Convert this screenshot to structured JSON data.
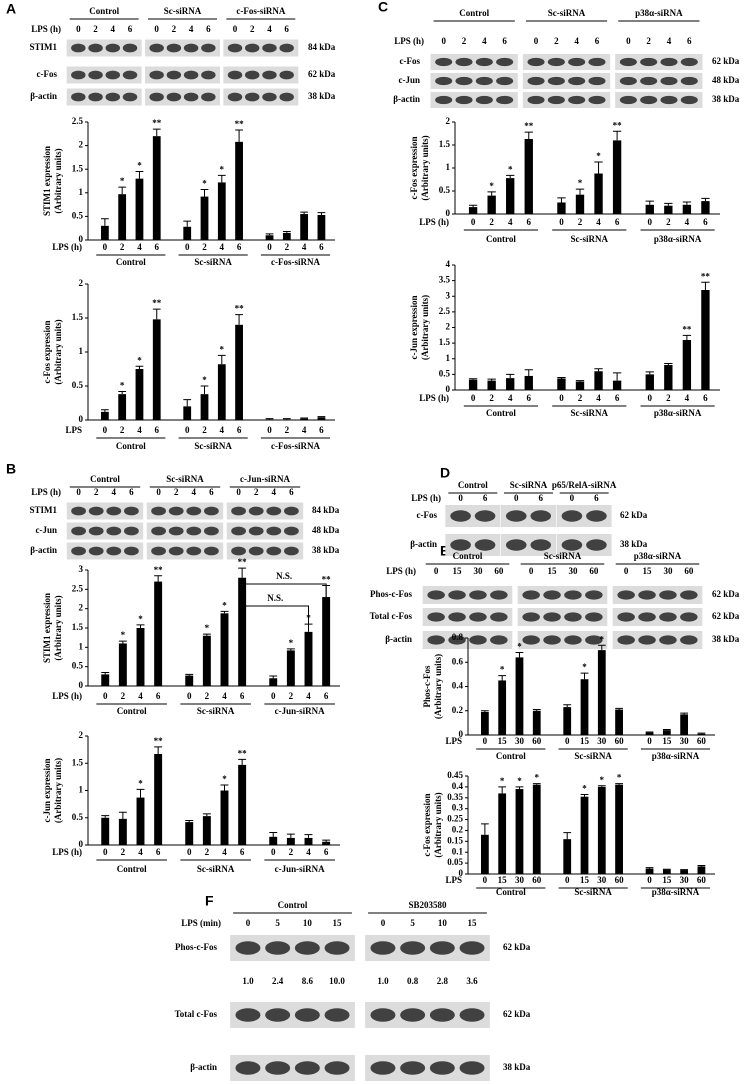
{
  "panel_labels": [
    "A",
    "B",
    "C",
    "D",
    "E",
    "F"
  ],
  "blots": {
    "A": {
      "lps": "LPS  (h)",
      "groups": [
        {
          "name": "Control",
          "times": [
            "0",
            "2",
            "4",
            "6"
          ]
        },
        {
          "name": "Sc-siRNA",
          "times": [
            "0",
            "2",
            "4",
            "6"
          ]
        },
        {
          "name": "c-Fos-siRNA",
          "times": [
            "0",
            "2",
            "4",
            "6"
          ]
        }
      ],
      "rows": [
        {
          "label": "STIM1",
          "kda": "84 kDa"
        },
        {
          "label": "c-Fos",
          "kda": "62 kDa"
        },
        {
          "label": "β-actin",
          "kda": "38 kDa"
        }
      ]
    },
    "C": {
      "lps": "LPS  (h)",
      "groups": [
        {
          "name": "Control",
          "times": [
            "0",
            "2",
            "4",
            "6"
          ]
        },
        {
          "name": "Sc-siRNA",
          "times": [
            "0",
            "2",
            "4",
            "6"
          ]
        },
        {
          "name": "p38α-siRNA",
          "times": [
            "0",
            "2",
            "4",
            "6"
          ]
        }
      ],
      "rows": [
        {
          "label": "c-Fos",
          "kda": "62 kDa"
        },
        {
          "label": "c-Jun",
          "kda": "48 kDa"
        },
        {
          "label": "β-actin",
          "kda": "38 kDa"
        }
      ]
    },
    "B": {
      "lps": "LPS  (h)",
      "groups": [
        {
          "name": "Control",
          "times": [
            "0",
            "2",
            "4",
            "6"
          ]
        },
        {
          "name": "Sc-siRNA",
          "times": [
            "0",
            "2",
            "4",
            "6"
          ]
        },
        {
          "name": "c-Jun-siRNA",
          "times": [
            "0",
            "2",
            "4",
            "6"
          ]
        }
      ],
      "rows": [
        {
          "label": "STIM1",
          "kda": "84 kDa"
        },
        {
          "label": "c-Jun",
          "kda": "48 kDa"
        },
        {
          "label": "β-actin",
          "kda": "38 kDa"
        }
      ]
    },
    "D": {
      "lps": "LPS (h)",
      "groups": [
        {
          "name": "Control",
          "times": [
            "0",
            "6"
          ]
        },
        {
          "name": "Sc-siRNA",
          "times": [
            "0",
            "6"
          ]
        },
        {
          "name": "p65/RelA-siRNA",
          "times": [
            "0",
            "6"
          ]
        }
      ],
      "rows": [
        {
          "label": "c-Fos",
          "kda": "62 kDa"
        },
        {
          "label": "β-actin",
          "kda": "38 kDa"
        }
      ]
    },
    "E": {
      "lps": "LPS  (h)",
      "groups": [
        {
          "name": "Control",
          "times": [
            "0",
            "15",
            "30",
            "60"
          ]
        },
        {
          "name": "Sc-siRNA",
          "times": [
            "0",
            "15",
            "30",
            "60"
          ]
        },
        {
          "name": "p38α-siRNA",
          "times": [
            "0",
            "15",
            "30",
            "60"
          ]
        }
      ],
      "rows": [
        {
          "label": "Phos-c-Fos",
          "kda": "62 kDa"
        },
        {
          "label": "Total c-Fos",
          "kda": "62 kDa"
        },
        {
          "label": "β-actin",
          "kda": "38 kDa"
        }
      ]
    },
    "F": {
      "lps": "LPS (min)",
      "groups": [
        {
          "name": "Control",
          "times": [
            "0",
            "5",
            "10",
            "15"
          ]
        },
        {
          "name": "SB203580",
          "times": [
            "0",
            "5",
            "10",
            "15"
          ]
        }
      ],
      "rows": [
        {
          "label": "Phos-c-Fos",
          "kda": "62 kDa"
        },
        {
          "label": "Total c-Fos",
          "kda": "62 kDa"
        },
        {
          "label": "β-actin",
          "kda": "38 kDa"
        }
      ],
      "quantification": [
        "1.0",
        "2.4",
        "8.6",
        "10.0",
        "1.0",
        "0.8",
        "2.8",
        "3.6"
      ]
    }
  },
  "chart_data": [
    {
      "type": "bar",
      "ylabel": [
        "STIM1 expression",
        "(Arbitrary units)"
      ],
      "xlabel": "LPS (h)",
      "color": "#000000",
      "ylim": [
        0,
        2.5
      ],
      "yticks": [
        0,
        0.5,
        1,
        1.5,
        2,
        2.5
      ],
      "series": [
        {
          "name": "Control",
          "categories": [
            "0",
            "2",
            "4",
            "6"
          ],
          "values": [
            0.3,
            0.97,
            1.3,
            2.2
          ],
          "errors": [
            0.15,
            0.15,
            0.15,
            0.15
          ],
          "markers": [
            null,
            "*",
            "*",
            "**"
          ]
        },
        {
          "name": "Sc-siRNA",
          "categories": [
            "0",
            "2",
            "4",
            "6"
          ],
          "values": [
            0.28,
            0.92,
            1.22,
            2.08
          ],
          "errors": [
            0.12,
            0.15,
            0.15,
            0.25
          ],
          "markers": [
            null,
            "*",
            "*",
            "**"
          ]
        },
        {
          "name": "c-Fos-siRNA",
          "categories": [
            "0",
            "2",
            "4",
            "6"
          ],
          "values": [
            0.1,
            0.15,
            0.55,
            0.53
          ],
          "errors": [
            0.03,
            0.03,
            0.04,
            0.05
          ],
          "markers": [
            null,
            null,
            null,
            null
          ]
        }
      ]
    },
    {
      "type": "bar",
      "ylabel": [
        "c-Fos expression",
        "(Arbitrary units)"
      ],
      "xlabel": "LPS",
      "color": "#000000",
      "ylim": [
        0,
        2
      ],
      "yticks": [
        0,
        0.5,
        1,
        1.5,
        2
      ],
      "series": [
        {
          "name": "Control",
          "categories": [
            "0",
            "2",
            "4",
            "6"
          ],
          "values": [
            0.12,
            0.38,
            0.75,
            1.48
          ],
          "errors": [
            0.03,
            0.04,
            0.04,
            0.15
          ],
          "markers": [
            null,
            "*",
            "*",
            "**"
          ]
        },
        {
          "name": "Sc-siRNA",
          "categories": [
            "0",
            "2",
            "4",
            "6"
          ],
          "values": [
            0.2,
            0.38,
            0.82,
            1.4
          ],
          "errors": [
            0.1,
            0.12,
            0.13,
            0.15
          ],
          "markers": [
            null,
            "*",
            "*",
            "**"
          ]
        },
        {
          "name": "c-Fos-siRNA",
          "categories": [
            "0",
            "2",
            "4",
            "6"
          ],
          "values": [
            0.01,
            0.01,
            0.02,
            0.04
          ],
          "errors": [
            0.01,
            0.01,
            0.01,
            0.01
          ],
          "markers": [
            null,
            null,
            null,
            null
          ]
        }
      ]
    },
    {
      "type": "bar",
      "ylabel": [
        "c-Fos expression",
        "(Arbitrary units)"
      ],
      "xlabel": "LPS (h)",
      "color": "#000000",
      "ylim": [
        0,
        2
      ],
      "yticks": [
        0,
        0.5,
        1,
        1.5,
        2
      ],
      "series": [
        {
          "name": "Control",
          "categories": [
            "0",
            "2",
            "4",
            "6"
          ],
          "values": [
            0.15,
            0.4,
            0.78,
            1.63
          ],
          "errors": [
            0.04,
            0.08,
            0.06,
            0.15
          ],
          "markers": [
            null,
            "*",
            "*",
            "**"
          ]
        },
        {
          "name": "Sc-siRNA",
          "categories": [
            "0",
            "2",
            "4",
            "6"
          ],
          "values": [
            0.25,
            0.42,
            0.88,
            1.6
          ],
          "errors": [
            0.1,
            0.12,
            0.25,
            0.2
          ],
          "markers": [
            null,
            "*",
            "*",
            "**"
          ]
        },
        {
          "name": "p38α-siRNA",
          "categories": [
            "0",
            "2",
            "4",
            "6"
          ],
          "values": [
            0.2,
            0.18,
            0.2,
            0.28
          ],
          "errors": [
            0.08,
            0.05,
            0.06,
            0.06
          ],
          "markers": [
            null,
            null,
            null,
            null
          ]
        }
      ]
    },
    {
      "type": "bar",
      "ylabel": [
        "c-Jun expression",
        "(Arbitrary units)"
      ],
      "xlabel": "LPS (h)",
      "color": "#000000",
      "ylim": [
        0,
        4
      ],
      "yticks": [
        0,
        0.5,
        1,
        1.5,
        2,
        2.5,
        3,
        3.5,
        4
      ],
      "series": [
        {
          "name": "Control",
          "categories": [
            "0",
            "2",
            "4",
            "6"
          ],
          "values": [
            0.33,
            0.3,
            0.38,
            0.45
          ],
          "errors": [
            0.03,
            0.05,
            0.12,
            0.2
          ],
          "markers": [
            null,
            null,
            null,
            null
          ]
        },
        {
          "name": "Sc-siRNA",
          "categories": [
            "0",
            "2",
            "4",
            "6"
          ],
          "values": [
            0.37,
            0.27,
            0.6,
            0.3
          ],
          "errors": [
            0.03,
            0.03,
            0.08,
            0.25
          ],
          "markers": [
            null,
            null,
            null,
            null
          ]
        },
        {
          "name": "p38α-siRNA",
          "categories": [
            "0",
            "2",
            "4",
            "6"
          ],
          "values": [
            0.5,
            0.8,
            1.6,
            3.2
          ],
          "errors": [
            0.08,
            0.05,
            0.15,
            0.25
          ],
          "markers": [
            null,
            null,
            "**",
            "**"
          ]
        }
      ]
    },
    {
      "type": "bar",
      "ylabel": [
        "STIM1 expression",
        "(Arbitrary units)"
      ],
      "xlabel": "LPS (h)",
      "color": "#000000",
      "ylim": [
        0,
        3
      ],
      "yticks": [
        0,
        0.5,
        1,
        1.5,
        2,
        2.5,
        3
      ],
      "annotations": [
        "N.S.",
        "N.S."
      ],
      "series": [
        {
          "name": "Control",
          "categories": [
            "0",
            "2",
            "4",
            "6"
          ],
          "values": [
            0.3,
            1.1,
            1.5,
            2.7
          ],
          "errors": [
            0.05,
            0.06,
            0.08,
            0.15
          ],
          "markers": [
            null,
            "*",
            "*",
            "**"
          ]
        },
        {
          "name": "Sc-siRNA",
          "categories": [
            "0",
            "2",
            "4",
            "6"
          ],
          "values": [
            0.27,
            1.3,
            1.88,
            2.8
          ],
          "errors": [
            0.03,
            0.04,
            0.05,
            0.25
          ],
          "markers": [
            null,
            "*",
            "*",
            "**"
          ]
        },
        {
          "name": "c-Jun-siRNA",
          "categories": [
            "0",
            "2",
            "4",
            "6"
          ],
          "values": [
            0.2,
            0.92,
            1.4,
            2.3
          ],
          "errors": [
            0.06,
            0.04,
            0.2,
            0.3
          ],
          "markers": [
            null,
            "*",
            "*",
            "**"
          ]
        }
      ]
    },
    {
      "type": "bar",
      "ylabel": [
        "c-Jun expression",
        "(Arbitrary units)"
      ],
      "xlabel": "LPS (h)",
      "color": "#000000",
      "ylim": [
        0,
        2
      ],
      "yticks": [
        0,
        0.5,
        1,
        1.5,
        2
      ],
      "series": [
        {
          "name": "Control",
          "categories": [
            "0",
            "2",
            "4",
            "6"
          ],
          "values": [
            0.5,
            0.48,
            0.87,
            1.67
          ],
          "errors": [
            0.04,
            0.12,
            0.15,
            0.13
          ],
          "markers": [
            null,
            null,
            "*",
            "**"
          ]
        },
        {
          "name": "Sc-siRNA",
          "categories": [
            "0",
            "2",
            "4",
            "6"
          ],
          "values": [
            0.42,
            0.53,
            1.0,
            1.47
          ],
          "errors": [
            0.03,
            0.04,
            0.1,
            0.1
          ],
          "markers": [
            null,
            null,
            "*",
            "**"
          ]
        },
        {
          "name": "c-Jun-siRNA",
          "categories": [
            "0",
            "2",
            "4",
            "6"
          ],
          "values": [
            0.15,
            0.13,
            0.13,
            0.06
          ],
          "errors": [
            0.08,
            0.07,
            0.06,
            0.03
          ],
          "markers": [
            null,
            null,
            null,
            null
          ]
        }
      ]
    },
    {
      "type": "bar",
      "ylabel": [
        "Phos-c-Fos",
        "(Arbitrary units)"
      ],
      "xlabel": "LPS",
      "color": "#000000",
      "ylim": [
        0,
        0.8
      ],
      "yticks": [
        0,
        0.2,
        0.4,
        0.6,
        0.8
      ],
      "series": [
        {
          "name": "Control",
          "categories": [
            "0",
            "15",
            "30",
            "60"
          ],
          "values": [
            0.19,
            0.45,
            0.64,
            0.2
          ],
          "errors": [
            0.01,
            0.04,
            0.04,
            0.01
          ],
          "markers": [
            null,
            "*",
            "*",
            null
          ]
        },
        {
          "name": "Sc-siRNA",
          "categories": [
            "0",
            "15",
            "30",
            "60"
          ],
          "values": [
            0.23,
            0.46,
            0.7,
            0.21
          ],
          "errors": [
            0.02,
            0.05,
            0.04,
            0.01
          ],
          "markers": [
            null,
            "*",
            "*",
            null
          ]
        },
        {
          "name": "p38α-siRNA",
          "categories": [
            "0",
            "15",
            "30",
            "60"
          ],
          "values": [
            0.02,
            0.04,
            0.17,
            0.01
          ],
          "errors": [
            0.005,
            0.005,
            0.01,
            0.005
          ],
          "markers": [
            null,
            null,
            null,
            null
          ]
        }
      ]
    },
    {
      "type": "bar",
      "ylabel": [
        "c-Fos expression",
        "(Arbitrary units)"
      ],
      "xlabel": "LPS",
      "color": "#000000",
      "ylim": [
        0,
        0.45
      ],
      "yticks": [
        0,
        0.05,
        0.1,
        0.15,
        0.2,
        0.25,
        0.3,
        0.35,
        0.4,
        0.45
      ],
      "series": [
        {
          "name": "Control",
          "categories": [
            "0",
            "15",
            "30",
            "60"
          ],
          "values": [
            0.18,
            0.37,
            0.39,
            0.41
          ],
          "errors": [
            0.05,
            0.03,
            0.01,
            0.005
          ],
          "markers": [
            null,
            "*",
            "*",
            "*"
          ]
        },
        {
          "name": "Sc-siRNA",
          "categories": [
            "0",
            "15",
            "30",
            "60"
          ],
          "values": [
            0.16,
            0.355,
            0.4,
            0.41
          ],
          "errors": [
            0.03,
            0.01,
            0.005,
            0.005
          ],
          "markers": [
            null,
            "*",
            "*",
            "*"
          ]
        },
        {
          "name": "p38α-siRNA",
          "categories": [
            "0",
            "15",
            "30",
            "60"
          ],
          "values": [
            0.025,
            0.02,
            0.018,
            0.035
          ],
          "errors": [
            0.004,
            0.002,
            0.002,
            0.004
          ],
          "markers": [
            null,
            null,
            null,
            null
          ]
        }
      ]
    }
  ]
}
